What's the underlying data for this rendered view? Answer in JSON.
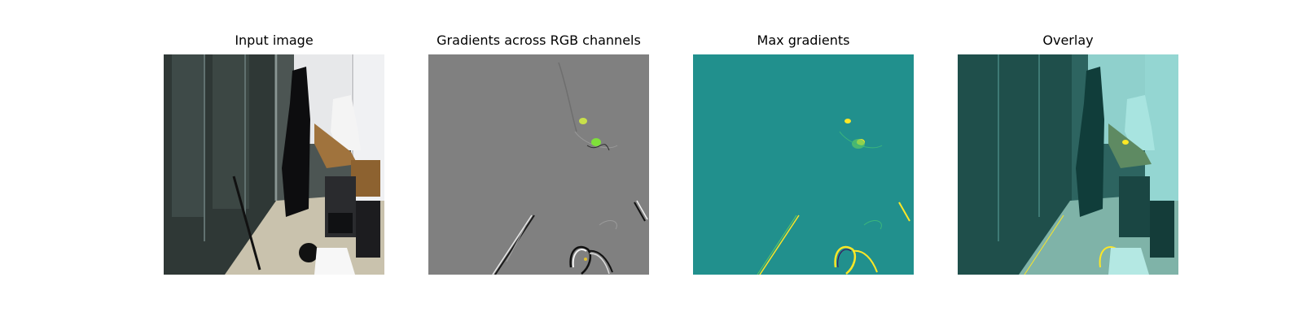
{
  "panels": [
    {
      "title": "Input image"
    },
    {
      "title": "Gradients across RGB channels"
    },
    {
      "title": "Max gradients"
    },
    {
      "title": "Overlay"
    }
  ],
  "colors": {
    "gray_background": "#808080",
    "viridis_background": "#21908d",
    "viridis_high": "#fde725",
    "viridis_mid": "#5ec962",
    "viridis_low": "#440154",
    "overlay_tint": "#8fd0cc"
  }
}
